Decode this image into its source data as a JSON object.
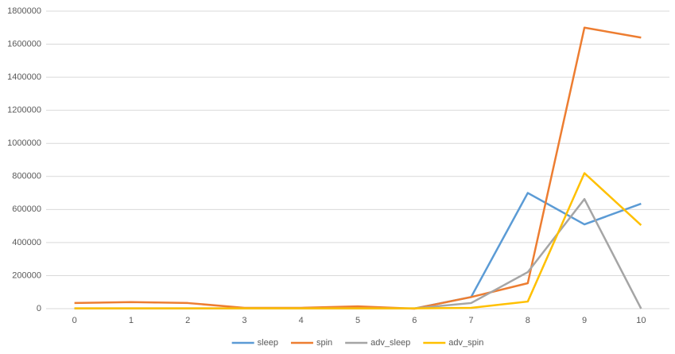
{
  "chart_data": {
    "type": "line",
    "categories": [
      "0",
      "1",
      "2",
      "3",
      "4",
      "5",
      "6",
      "7",
      "8",
      "9",
      "10"
    ],
    "series": [
      {
        "name": "sleep",
        "color": "#5b9bd5",
        "values": [
          1000,
          1000,
          1000,
          1000,
          1000,
          1000,
          1000,
          70000,
          700000,
          510000,
          635000
        ]
      },
      {
        "name": "spin",
        "color": "#ed7d31",
        "values": [
          34000,
          40000,
          34000,
          5000,
          5000,
          14000,
          0,
          70000,
          154000,
          1700000,
          1640000
        ]
      },
      {
        "name": "adv_sleep",
        "color": "#a5a5a5",
        "values": [
          2000,
          2000,
          2000,
          2000,
          2000,
          2000,
          2000,
          34000,
          221000,
          663000,
          0
        ]
      },
      {
        "name": "adv_spin",
        "color": "#ffc000",
        "values": [
          2000,
          2000,
          2000,
          2000,
          2000,
          2000,
          2000,
          5000,
          43000,
          820000,
          505000
        ]
      }
    ],
    "ylim": [
      0,
      1800000
    ],
    "yticks": [
      0,
      200000,
      400000,
      600000,
      800000,
      1000000,
      1200000,
      1400000,
      1600000,
      1800000
    ],
    "grid": true,
    "legend": "bottom"
  }
}
